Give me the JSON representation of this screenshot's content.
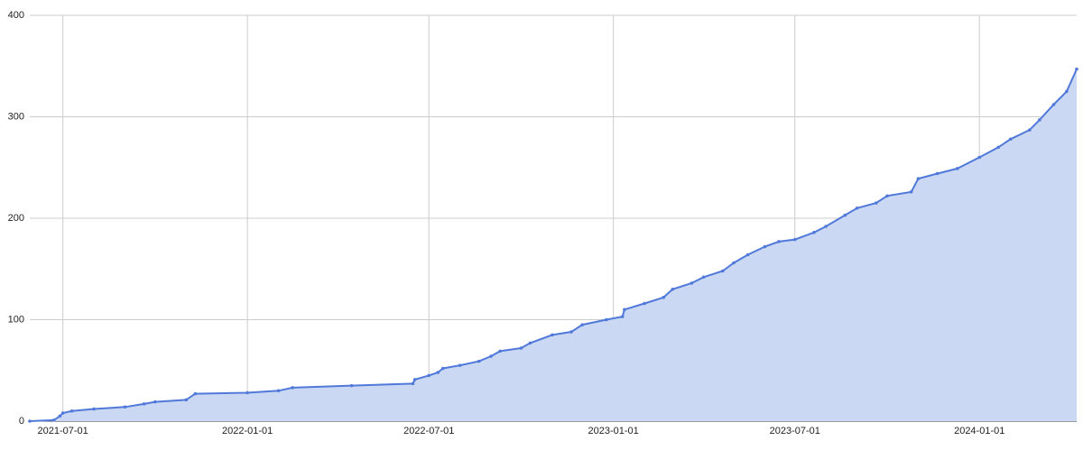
{
  "chart_data": {
    "type": "area",
    "x": [
      "2021-05-29",
      "2021-06-22",
      "2021-06-28",
      "2021-07-01",
      "2021-07-10",
      "2021-08-01",
      "2021-09-01",
      "2021-09-20",
      "2021-10-01",
      "2021-11-01",
      "2021-11-10",
      "2022-01-01",
      "2022-02-01",
      "2022-02-15",
      "2022-04-15",
      "2022-06-15",
      "2022-06-17",
      "2022-07-01",
      "2022-07-10",
      "2022-07-15",
      "2022-08-01",
      "2022-08-20",
      "2022-09-01",
      "2022-09-10",
      "2022-10-01",
      "2022-10-10",
      "2022-11-01",
      "2022-11-20",
      "2022-12-01",
      "2022-12-25",
      "2023-01-10",
      "2023-01-12",
      "2023-02-01",
      "2023-02-20",
      "2023-03-01",
      "2023-03-20",
      "2023-04-01",
      "2023-04-20",
      "2023-05-01",
      "2023-05-15",
      "2023-06-01",
      "2023-06-15",
      "2023-07-01",
      "2023-07-20",
      "2023-08-01",
      "2023-08-20",
      "2023-09-01",
      "2023-09-20",
      "2023-10-01",
      "2023-10-25",
      "2023-11-01",
      "2023-11-20",
      "2023-12-10",
      "2024-01-01",
      "2024-01-20",
      "2024-02-01",
      "2024-02-20",
      "2024-03-01",
      "2024-03-15",
      "2024-03-28",
      "2024-04-07"
    ],
    "values": [
      0,
      1,
      5,
      8,
      10,
      12,
      14,
      17,
      19,
      21,
      27,
      28,
      30,
      33,
      35,
      37,
      41,
      45,
      48,
      52,
      55,
      59,
      64,
      69,
      72,
      77,
      85,
      88,
      95,
      100,
      103,
      110,
      116,
      122,
      130,
      136,
      142,
      148,
      156,
      164,
      172,
      177,
      179,
      186,
      192,
      203,
      210,
      215,
      222,
      226,
      239,
      244,
      249,
      260,
      270,
      278,
      287,
      297,
      312,
      325,
      347
    ],
    "color": "#5079d9",
    "fill": "#cad8f4",
    "xlim": [
      "2021-05-29",
      "2024-04-07"
    ],
    "xticks": [
      "2021-07-01",
      "2022-01-01",
      "2022-07-01",
      "2023-01-01",
      "2023-07-01",
      "2024-01-01"
    ],
    "ylim": [
      0,
      400
    ],
    "yticks": [
      0,
      100,
      200,
      300,
      400
    ],
    "grid": true
  }
}
